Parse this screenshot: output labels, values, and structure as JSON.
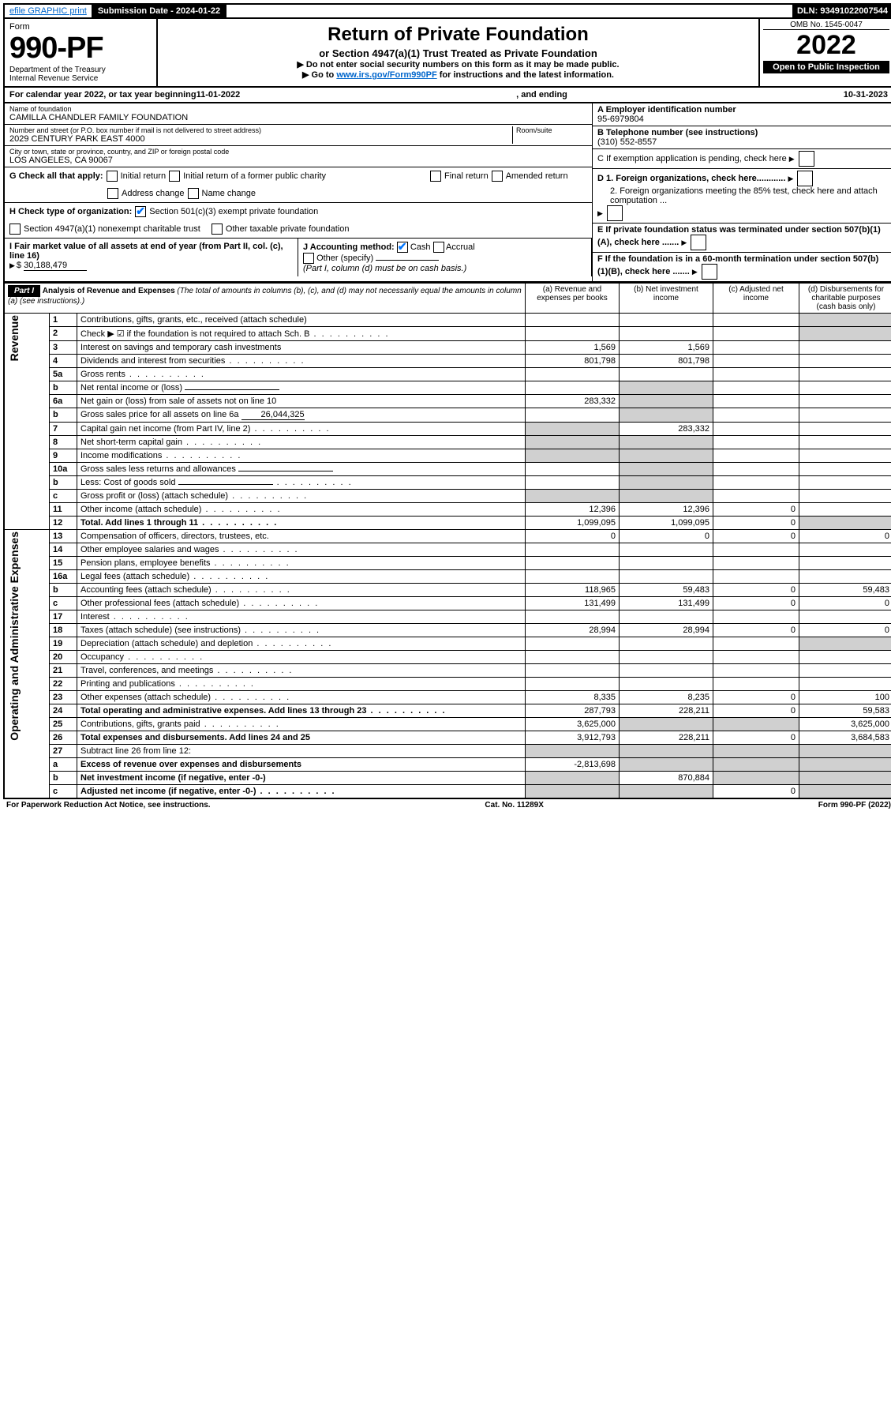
{
  "top": {
    "efile": "efile GRAPHIC print",
    "subdate_label": "Submission Date - ",
    "subdate": "2024-01-22",
    "dln_label": "DLN: ",
    "dln": "93491022007544"
  },
  "header": {
    "form": "Form",
    "formno": "990-PF",
    "dept": "Department of the Treasury",
    "irs": "Internal Revenue Service",
    "title": "Return of Private Foundation",
    "subtitle": "or Section 4947(a)(1) Trust Treated as Private Foundation",
    "note1": "▶ Do not enter social security numbers on this form as it may be made public.",
    "note2_a": "▶ Go to ",
    "note2_link": "www.irs.gov/Form990PF",
    "note2_b": " for instructions and the latest information.",
    "omb": "OMB No. 1545-0047",
    "year": "2022",
    "open": "Open to Public Inspection"
  },
  "cal": {
    "a": "For calendar year 2022, or tax year beginning ",
    "begin": "11-01-2022",
    "b": " , and ending ",
    "end": "10-31-2023"
  },
  "entity": {
    "name_label": "Name of foundation",
    "name": "CAMILLA CHANDLER FAMILY FOUNDATION",
    "addr_label": "Number and street (or P.O. box number if mail is not delivered to street address)",
    "addr": "2029 CENTURY PARK EAST 4000",
    "room_label": "Room/suite",
    "city_label": "City or town, state or province, country, and ZIP or foreign postal code",
    "city": "LOS ANGELES, CA  90067",
    "ein_label": "A Employer identification number",
    "ein": "95-6979804",
    "tel_label": "B Telephone number (see instructions)",
    "tel": "(310) 552-8557",
    "c": "C If exemption application is pending, check here",
    "d1": "D 1. Foreign organizations, check here............",
    "d2": "2. Foreign organizations meeting the 85% test, check here and attach computation ...",
    "e": "E If private foundation status was terminated under section 507(b)(1)(A), check here .......",
    "f": "F If the foundation is in a 60-month termination under section 507(b)(1)(B), check here .......",
    "g_label": "G Check all that apply:",
    "g_opts": [
      "Initial return",
      "Initial return of a former public charity",
      "Final return",
      "Amended return",
      "Address change",
      "Name change"
    ],
    "h_label": "H Check type of organization:",
    "h1": "Section 501(c)(3) exempt private foundation",
    "h2": "Section 4947(a)(1) nonexempt charitable trust",
    "h3": "Other taxable private foundation",
    "i_label": "I Fair market value of all assets at end of year (from Part II, col. (c), line 16)",
    "i_val": "30,188,479",
    "j_label": "J Accounting method:",
    "j_cash": "Cash",
    "j_accr": "Accrual",
    "j_other": "Other (specify)",
    "j_note": "(Part I, column (d) must be on cash basis.)"
  },
  "part1": {
    "label": "Part I",
    "title": "Analysis of Revenue and Expenses",
    "title_note": " (The total of amounts in columns (b), (c), and (d) may not necessarily equal the amounts in column (a) (see instructions).)",
    "cols": [
      "(a) Revenue and expenses per books",
      "(b) Net investment income",
      "(c) Adjusted net income",
      "(d) Disbursements for charitable purposes (cash basis only)"
    ],
    "side_rev": "Revenue",
    "side_exp": "Operating and Administrative Expenses"
  },
  "rows": [
    {
      "n": "1",
      "t": "Contributions, gifts, grants, etc., received (attach schedule)",
      "a": "",
      "b": "",
      "c": "",
      "d": "",
      "sd": true
    },
    {
      "n": "2",
      "t": "Check ▶ ☑ if the foundation is not required to attach Sch. B",
      "dots": true,
      "a": "",
      "b": "",
      "c": "",
      "d": "",
      "sd": true,
      "sd_c": true
    },
    {
      "n": "3",
      "t": "Interest on savings and temporary cash investments",
      "a": "1,569",
      "b": "1,569",
      "c": "",
      "d": ""
    },
    {
      "n": "4",
      "t": "Dividends and interest from securities",
      "dots": true,
      "a": "801,798",
      "b": "801,798",
      "c": "",
      "d": ""
    },
    {
      "n": "5a",
      "t": "Gross rents",
      "dots": true,
      "a": "",
      "b": "",
      "c": "",
      "d": ""
    },
    {
      "n": "b",
      "t": "Net rental income or (loss)",
      "inline": true,
      "a": "",
      "b": "",
      "c": "",
      "d": "",
      "sb": true
    },
    {
      "n": "6a",
      "t": "Net gain or (loss) from sale of assets not on line 10",
      "a": "283,332",
      "b": "",
      "c": "",
      "d": "",
      "sb": true
    },
    {
      "n": "b",
      "t": "Gross sales price for all assets on line 6a",
      "inline_val": "26,044,325",
      "a": "",
      "b": "",
      "c": "",
      "d": "",
      "sb": true
    },
    {
      "n": "7",
      "t": "Capital gain net income (from Part IV, line 2)",
      "dots": true,
      "a": "",
      "b": "283,332",
      "c": "",
      "d": "",
      "sa": true
    },
    {
      "n": "8",
      "t": "Net short-term capital gain",
      "dots": true,
      "a": "",
      "b": "",
      "c": "",
      "d": "",
      "sa": true,
      "sb": true
    },
    {
      "n": "9",
      "t": "Income modifications",
      "dots": true,
      "a": "",
      "b": "",
      "c": "",
      "d": "",
      "sa": true,
      "sb": true
    },
    {
      "n": "10a",
      "t": "Gross sales less returns and allowances",
      "inline": true,
      "a": "",
      "b": "",
      "c": "",
      "d": "",
      "sb": true
    },
    {
      "n": "b",
      "t": "Less: Cost of goods sold",
      "dots": true,
      "inline": true,
      "a": "",
      "b": "",
      "c": "",
      "d": "",
      "sb": true
    },
    {
      "n": "c",
      "t": "Gross profit or (loss) (attach schedule)",
      "dots": true,
      "a": "",
      "b": "",
      "c": "",
      "d": "",
      "sa": true,
      "sb": true
    },
    {
      "n": "11",
      "t": "Other income (attach schedule)",
      "dots": true,
      "a": "12,396",
      "b": "12,396",
      "c": "0",
      "d": ""
    },
    {
      "n": "12",
      "t": "Total. Add lines 1 through 11",
      "dots": true,
      "bold": true,
      "a": "1,099,095",
      "b": "1,099,095",
      "c": "0",
      "d": "",
      "sd": true
    },
    {
      "n": "13",
      "t": "Compensation of officers, directors, trustees, etc.",
      "a": "0",
      "b": "0",
      "c": "0",
      "d": "0"
    },
    {
      "n": "14",
      "t": "Other employee salaries and wages",
      "dots": true,
      "a": "",
      "b": "",
      "c": "",
      "d": ""
    },
    {
      "n": "15",
      "t": "Pension plans, employee benefits",
      "dots": true,
      "a": "",
      "b": "",
      "c": "",
      "d": ""
    },
    {
      "n": "16a",
      "t": "Legal fees (attach schedule)",
      "dots": true,
      "a": "",
      "b": "",
      "c": "",
      "d": ""
    },
    {
      "n": "b",
      "t": "Accounting fees (attach schedule)",
      "dots": true,
      "a": "118,965",
      "b": "59,483",
      "c": "0",
      "d": "59,483"
    },
    {
      "n": "c",
      "t": "Other professional fees (attach schedule)",
      "dots": true,
      "a": "131,499",
      "b": "131,499",
      "c": "0",
      "d": "0"
    },
    {
      "n": "17",
      "t": "Interest",
      "dots": true,
      "a": "",
      "b": "",
      "c": "",
      "d": ""
    },
    {
      "n": "18",
      "t": "Taxes (attach schedule) (see instructions)",
      "dots": true,
      "a": "28,994",
      "b": "28,994",
      "c": "0",
      "d": "0"
    },
    {
      "n": "19",
      "t": "Depreciation (attach schedule) and depletion",
      "dots": true,
      "a": "",
      "b": "",
      "c": "",
      "d": "",
      "sd": true
    },
    {
      "n": "20",
      "t": "Occupancy",
      "dots": true,
      "a": "",
      "b": "",
      "c": "",
      "d": ""
    },
    {
      "n": "21",
      "t": "Travel, conferences, and meetings",
      "dots": true,
      "a": "",
      "b": "",
      "c": "",
      "d": ""
    },
    {
      "n": "22",
      "t": "Printing and publications",
      "dots": true,
      "a": "",
      "b": "",
      "c": "",
      "d": ""
    },
    {
      "n": "23",
      "t": "Other expenses (attach schedule)",
      "dots": true,
      "a": "8,335",
      "b": "8,235",
      "c": "0",
      "d": "100"
    },
    {
      "n": "24",
      "t": "Total operating and administrative expenses. Add lines 13 through 23",
      "dots": true,
      "bold": true,
      "a": "287,793",
      "b": "228,211",
      "c": "0",
      "d": "59,583"
    },
    {
      "n": "25",
      "t": "Contributions, gifts, grants paid",
      "dots": true,
      "a": "3,625,000",
      "b": "",
      "c": "",
      "d": "3,625,000",
      "sb": true,
      "sc": true
    },
    {
      "n": "26",
      "t": "Total expenses and disbursements. Add lines 24 and 25",
      "bold": true,
      "a": "3,912,793",
      "b": "228,211",
      "c": "0",
      "d": "3,684,583"
    },
    {
      "n": "27",
      "t": "Subtract line 26 from line 12:",
      "a": "",
      "b": "",
      "c": "",
      "d": "",
      "sa": true,
      "sb": true,
      "sc": true,
      "sd": true
    },
    {
      "n": "a",
      "t": "Excess of revenue over expenses and disbursements",
      "bold": true,
      "a": "-2,813,698",
      "b": "",
      "c": "",
      "d": "",
      "sb": true,
      "sc": true,
      "sd": true
    },
    {
      "n": "b",
      "t": "Net investment income (if negative, enter -0-)",
      "bold": true,
      "a": "",
      "b": "870,884",
      "c": "",
      "d": "",
      "sa": true,
      "sc": true,
      "sd": true
    },
    {
      "n": "c",
      "t": "Adjusted net income (if negative, enter -0-)",
      "dots": true,
      "bold": true,
      "a": "",
      "b": "",
      "c": "0",
      "d": "",
      "sa": true,
      "sb": true,
      "sd": true
    }
  ],
  "footer": {
    "left": "For Paperwork Reduction Act Notice, see instructions.",
    "mid": "Cat. No. 11289X",
    "right": "Form 990-PF (2022)"
  }
}
